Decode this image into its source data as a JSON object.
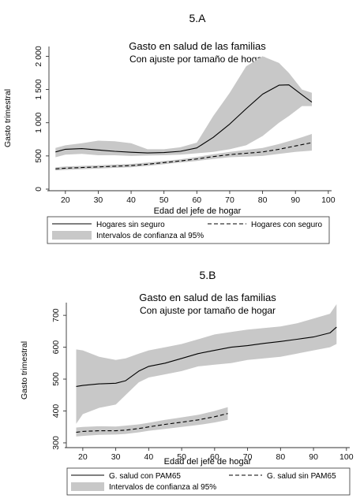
{
  "charts": [
    {
      "panel_label": "5.A",
      "title": "Gasto en salud de las familias",
      "subtitle": "Con ajuste por tamaño de hogar",
      "xlabel": "Edad del jefe de hogar",
      "ylabel": "Gasto trimestral"
    },
    {
      "panel_label": "5.B",
      "title": "Gasto en salud de las familias",
      "subtitle": "Con ajuste por tamaño de hogar",
      "xlabel": "Edad del jefe de hogar",
      "ylabel": "Gasto trimestral"
    }
  ],
  "chart_data": [
    {
      "type": "line",
      "xlim": [
        15,
        101
      ],
      "ylim": [
        0,
        2100
      ],
      "xticks": [
        20,
        30,
        40,
        50,
        60,
        70,
        80,
        90,
        100
      ],
      "xtick_labels": [
        "20",
        "30",
        "40",
        "50",
        "60",
        "70",
        "80",
        "90",
        "100"
      ],
      "yticks": [
        0,
        500,
        1000,
        1500,
        2000
      ],
      "ytick_labels": [
        "0",
        "500",
        "1 000",
        "1 500",
        "2 000"
      ],
      "legend_position": "bottom",
      "series": [
        {
          "name": "Hogares sin seguro",
          "style": "solid",
          "x": [
            17,
            20,
            25,
            30,
            35,
            40,
            45,
            50,
            55,
            60,
            65,
            70,
            75,
            80,
            85,
            88,
            92,
            95
          ],
          "y": [
            560,
            600,
            610,
            590,
            570,
            555,
            545,
            550,
            570,
            620,
            780,
            980,
            1210,
            1430,
            1565,
            1570,
            1420,
            1310
          ],
          "ci_lower": [
            480,
            520,
            530,
            510,
            510,
            500,
            505,
            510,
            520,
            540,
            560,
            600,
            660,
            800,
            1000,
            1100,
            1250,
            1250
          ],
          "ci_upper": [
            620,
            660,
            690,
            730,
            720,
            690,
            600,
            600,
            630,
            700,
            1100,
            1450,
            1850,
            2000,
            1900,
            1750,
            1500,
            1450
          ]
        },
        {
          "name": "Hogares con seguro",
          "style": "dashed",
          "x": [
            17,
            20,
            25,
            30,
            35,
            40,
            45,
            50,
            55,
            60,
            65,
            70,
            75,
            80,
            85,
            90,
            95
          ],
          "y": [
            305,
            315,
            325,
            335,
            345,
            355,
            375,
            400,
            425,
            455,
            490,
            520,
            540,
            560,
            600,
            650,
            700
          ],
          "ci_lower": [
            280,
            290,
            300,
            310,
            320,
            330,
            350,
            375,
            400,
            425,
            455,
            480,
            490,
            500,
            530,
            560,
            580
          ],
          "ci_upper": [
            330,
            340,
            350,
            360,
            370,
            380,
            400,
            425,
            450,
            485,
            525,
            560,
            590,
            620,
            680,
            750,
            830
          ]
        }
      ],
      "legend_entries": [
        "Hogares sin seguro",
        "Hogares con seguro",
        "Intervalos de confianza al 95%"
      ]
    },
    {
      "type": "line",
      "xlim": [
        15,
        101
      ],
      "ylim": [
        290,
        730
      ],
      "xticks": [
        20,
        30,
        40,
        50,
        60,
        70,
        80,
        90,
        100
      ],
      "xtick_labels": [
        "20",
        "30",
        "40",
        "50",
        "60",
        "70",
        "80",
        "90",
        "100"
      ],
      "yticks": [
        300,
        400,
        500,
        600,
        700
      ],
      "ytick_labels": [
        "300",
        "400",
        "500",
        "600",
        "700"
      ],
      "legend_position": "bottom",
      "series": [
        {
          "name": "G. salud con PAM65",
          "style": "solid",
          "x": [
            18,
            20,
            25,
            30,
            33,
            37,
            40,
            45,
            50,
            55,
            60,
            65,
            70,
            75,
            80,
            85,
            90,
            95,
            97
          ],
          "y": [
            477,
            480,
            485,
            487,
            495,
            525,
            540,
            550,
            565,
            580,
            590,
            600,
            605,
            612,
            618,
            625,
            632,
            645,
            663
          ],
          "ci_lower": [
            360,
            390,
            410,
            420,
            450,
            490,
            505,
            515,
            525,
            540,
            545,
            550,
            560,
            565,
            570,
            580,
            590,
            600,
            610
          ],
          "ci_upper": [
            593,
            590,
            570,
            560,
            565,
            580,
            590,
            600,
            610,
            625,
            640,
            648,
            655,
            660,
            665,
            675,
            690,
            705,
            735
          ]
        },
        {
          "name": "G. salud sin PAM65",
          "style": "dashed",
          "x": [
            18,
            20,
            25,
            30,
            33,
            37,
            40,
            45,
            50,
            55,
            60,
            64
          ],
          "y": [
            333,
            336,
            338,
            338,
            340,
            345,
            350,
            358,
            365,
            372,
            382,
            392
          ],
          "ci_lower": [
            320,
            322,
            325,
            326,
            328,
            333,
            338,
            344,
            350,
            356,
            364,
            372
          ],
          "ci_upper": [
            348,
            350,
            352,
            351,
            354,
            358,
            363,
            372,
            380,
            388,
            400,
            412
          ]
        }
      ],
      "legend_entries": [
        "G. salud con PAM65",
        "G. salud sin PAM65",
        "Intervalos de confianza al 95%"
      ]
    }
  ],
  "colors": {
    "ci_fill": "#c8c8c8",
    "line": "#000000",
    "axis": "#333333",
    "text": "#111111"
  }
}
